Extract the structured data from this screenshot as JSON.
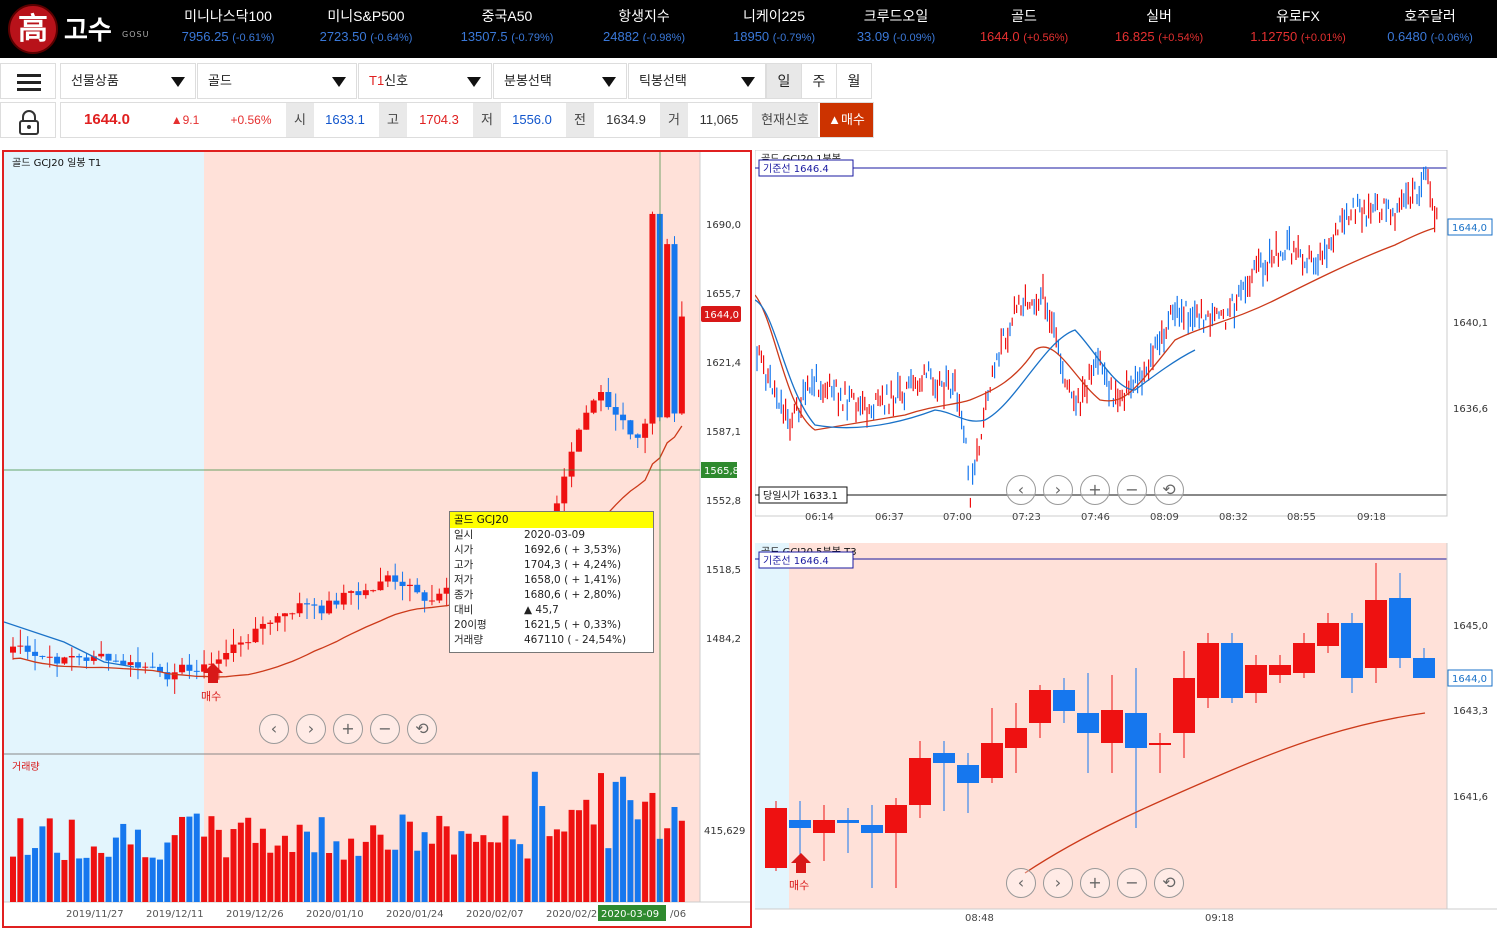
{
  "brand": {
    "logo_char": "高",
    "name": "고수",
    "sub": "GOSU"
  },
  "tickers": [
    {
      "name": "미니나스닥100",
      "value": "7956.25",
      "change": "(-0.61%)",
      "dir": "down"
    },
    {
      "name": "미니S&P500",
      "value": "2723.50",
      "change": "(-0.64%)",
      "dir": "down"
    },
    {
      "name": "중국A50",
      "value": "13507.5",
      "change": "(-0.79%)",
      "dir": "down"
    },
    {
      "name": "항생지수",
      "value": "24882",
      "change": "(-0.98%)",
      "dir": "down"
    },
    {
      "name": "니케이225",
      "value": "18950",
      "change": "(-0.79%)",
      "dir": "down"
    },
    {
      "name": "크루드오일",
      "value": "33.09",
      "change": "(-0.09%)",
      "dir": "down"
    },
    {
      "name": "골드",
      "value": "1644.0",
      "change": "(+0.56%)",
      "dir": "up"
    },
    {
      "name": "실버",
      "value": "16.825",
      "change": "(+0.54%)",
      "dir": "up"
    },
    {
      "name": "유로FX",
      "value": "1.12750",
      "change": "(+0.01%)",
      "dir": "up"
    },
    {
      "name": "호주달러",
      "value": "0.6480",
      "change": "(-0.06%)",
      "dir": "down"
    }
  ],
  "controls": {
    "futures_select": "선물상품",
    "item_select": "골드",
    "signal_select_prefix": "T1",
    "signal_select_suffix": "신호",
    "minute_select": "분봉선택",
    "tick_select": "틱봉선택",
    "periods": [
      "일",
      "주",
      "월"
    ]
  },
  "quote": {
    "price": "1644.0",
    "change": "▲9.1",
    "pct": "+0.56%",
    "open_label": "시",
    "open": "1633.1",
    "high_label": "고",
    "high": "1704.3",
    "low_label": "저",
    "low": "1556.0",
    "prev_label": "전",
    "prev": "1634.9",
    "vol_label": "거",
    "vol": "11,065",
    "signal_label": "현재신호",
    "signal": "▲매수"
  },
  "colors": {
    "up": "#ee1111",
    "down": "#1677ee",
    "ma": "#cc3a1a",
    "ma_blue": "#1a72c8",
    "buy_zone": "#ffe1d9",
    "neutral_zone": "#e3f5fd",
    "highlight": "#e02020"
  },
  "chart_left": {
    "header": "골드  GCJ20  일봉  T1",
    "price_ticks": [
      "1690,0",
      "1655,7",
      "1621,4",
      "1587,1",
      "1552,8",
      "1518,5",
      "1484,2"
    ],
    "current_price": "1644,0",
    "cursor_price": "1565,8",
    "volume_label": "거래량",
    "volume_tick": "415,629",
    "date_ticks": [
      "2019/11/27",
      "2019/12/11",
      "2019/12/26",
      "2020/01/10",
      "2020/01/24",
      "2020/02/07",
      "2020/02/2",
      "2020-03-09",
      "/06"
    ],
    "buy_marker": "매수",
    "tooltip": {
      "title": "골드   GCJ20",
      "rows": [
        {
          "k": "일시",
          "v": "2020-03-09"
        },
        {
          "k": "시가",
          "v": "1692,6 ( + 3,53%)"
        },
        {
          "k": "고가",
          "v": "1704,3 ( + 4,24%)"
        },
        {
          "k": "저가",
          "v": "1658,0 ( + 1,41%)"
        },
        {
          "k": "종가",
          "v": "1680,6 ( + 2,80%)"
        },
        {
          "k": "대비",
          "v": "▲ 45,7"
        },
        {
          "k": "20이평",
          "v": "1621,5 ( + 0,33%)"
        },
        {
          "k": "거래량",
          "v": "467110 ( - 24,54%)"
        }
      ]
    }
  },
  "chart_right_top": {
    "header": "골드  GCJ20  1분봉",
    "ref_line": "기준선 1646.4",
    "open_line": "당일시가 1633.1",
    "price_ticks": [
      "1640,1",
      "1636,6"
    ],
    "current_price": "1644,0",
    "time_ticks": [
      "06:14",
      "06:37",
      "07:00",
      "07:23",
      "07:46",
      "08:09",
      "08:32",
      "08:55",
      "09:18"
    ]
  },
  "chart_right_bottom": {
    "header": "골드  GCJ20  5분봉  T3",
    "ref_line": "기준선 1646.4",
    "price_ticks": [
      "1645,0",
      "1643,3",
      "1641,6"
    ],
    "current_price": "1644,0",
    "time_ticks": [
      "08:48",
      "09:18"
    ],
    "buy_marker": "매수"
  },
  "nav_buttons": [
    "prev",
    "next",
    "zoom-in",
    "zoom-out",
    "reset"
  ]
}
